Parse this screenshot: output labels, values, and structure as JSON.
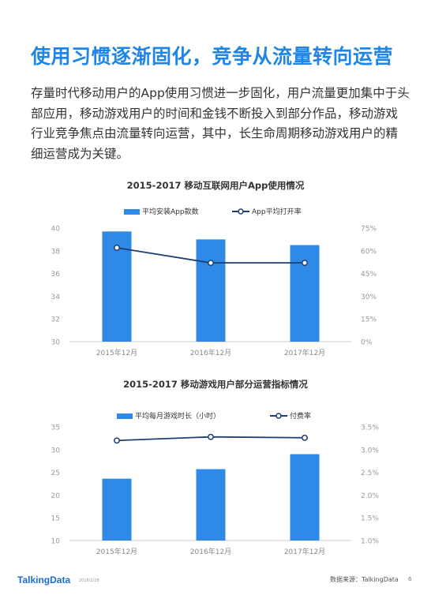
{
  "title": "使用习惯逐渐固化，竞争从流量转向运营",
  "body": "存量时代移动用户的App使用习惯进一步固化，用户流量更加集中于头部应用，移动游戏用户的时间和金钱不断投入到部分作品，移动游戏行业竞争焦点由流量转向运营，其中，长生命周期移动游戏用户的精细运营成为关键。",
  "chart_data": [
    {
      "type": "bar+line",
      "title": "2015-2017 移动互联网用户App使用情况",
      "categories": [
        "2015年12月",
        "2016年12月",
        "2017年12月"
      ],
      "series": [
        {
          "name": "平均安装App款数",
          "type": "bar",
          "axis": "left",
          "values": [
            39.7,
            39.0,
            38.5
          ]
        },
        {
          "name": "App平均打开率",
          "type": "line",
          "axis": "right",
          "values": [
            62,
            52,
            52
          ]
        }
      ],
      "left_axis": {
        "ylim": [
          30,
          40
        ],
        "ticks": [
          "30",
          "32",
          "34",
          "36",
          "38",
          "40"
        ]
      },
      "right_axis": {
        "ylim": [
          0,
          75
        ],
        "ticks": [
          "0%",
          "15%",
          "30%",
          "45%",
          "60%",
          "75%"
        ]
      },
      "colors": {
        "bar": "#2e8ae6",
        "line": "#1f3f73"
      },
      "legend": "top-center"
    },
    {
      "type": "bar+line",
      "title": "2015-2017 移动游戏用户部分运营指标情况",
      "categories": [
        "2015年12月",
        "2016年12月",
        "2017年12月"
      ],
      "series": [
        {
          "name": "平均每月游戏时长（小时）",
          "type": "bar",
          "axis": "left",
          "values": [
            23.6,
            25.7,
            29.0
          ]
        },
        {
          "name": "付费率",
          "type": "line",
          "axis": "right",
          "values": [
            3.2,
            3.28,
            3.26
          ]
        }
      ],
      "left_axis": {
        "ylim": [
          10,
          35
        ],
        "ticks": [
          "10",
          "15",
          "20",
          "25",
          "30",
          "35"
        ]
      },
      "right_axis": {
        "ylim": [
          1.0,
          3.5
        ],
        "ticks": [
          "1.0%",
          "1.5%",
          "2.0%",
          "2.5%",
          "3.0%",
          "3.5%"
        ]
      },
      "colors": {
        "bar": "#2e8ae6",
        "line": "#1f3f73"
      },
      "legend": "top-center"
    }
  ],
  "footer": {
    "logo": "TalkingData",
    "date": "2018/2/28",
    "source": "数据来源：TalkingData",
    "page": "6"
  }
}
